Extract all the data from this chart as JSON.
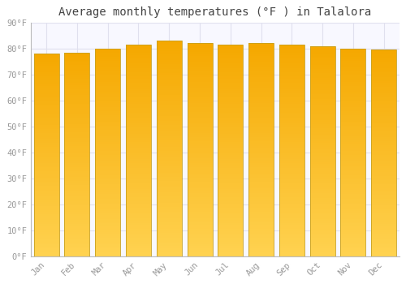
{
  "title": "Average monthly temperatures (°F ) in Talalora",
  "months": [
    "Jan",
    "Feb",
    "Mar",
    "Apr",
    "May",
    "Jun",
    "Jul",
    "Aug",
    "Sep",
    "Oct",
    "Nov",
    "Dec"
  ],
  "values": [
    78,
    78.5,
    80,
    81.5,
    83,
    82,
    81.5,
    82,
    81.5,
    81,
    80,
    79.5
  ],
  "ylim": [
    0,
    90
  ],
  "yticks": [
    0,
    10,
    20,
    30,
    40,
    50,
    60,
    70,
    80,
    90
  ],
  "bar_color_top": "#F5A800",
  "bar_color_bottom": "#FFD060",
  "bar_edge_color": "#B8860B",
  "background_color": "#FFFFFF",
  "plot_bg_color": "#F8F8FF",
  "grid_color": "#E0E0EE",
  "title_fontsize": 10,
  "tick_fontsize": 7.5,
  "font_color": "#999999"
}
